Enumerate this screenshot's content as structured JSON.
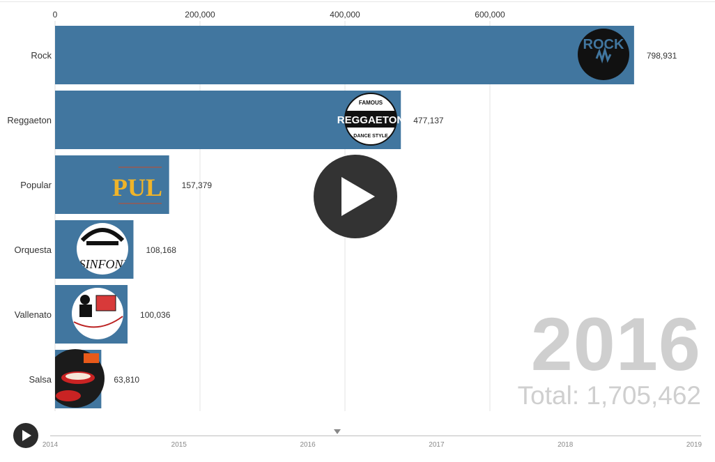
{
  "chart_data": {
    "type": "bar",
    "orientation": "horizontal",
    "categories": [
      "Rock",
      "Reggaeton",
      "Popular",
      "Orquesta",
      "Vallenato",
      "Salsa"
    ],
    "values": [
      798931,
      477137,
      157379,
      108168,
      100036,
      63810
    ],
    "value_labels": [
      "798,931",
      "477,137",
      "157,379",
      "108,168",
      "100,036",
      "63,810"
    ],
    "x_ticks": [
      0,
      200000,
      400000,
      600000
    ],
    "x_tick_labels": [
      "0",
      "200,000",
      "400,000",
      "600,000"
    ],
    "xlim": [
      0,
      800000
    ],
    "bar_color": "#41769f",
    "logos": [
      "Rock",
      "Reggaeton",
      "Popular",
      "Orquesta",
      "Vallenato",
      "Salsa"
    ],
    "grid": true,
    "axis_position": "top"
  },
  "year": "2016",
  "total_text": "Total: 1,705,462",
  "timeline": {
    "labels": [
      "2014",
      "2015",
      "2016",
      "2017",
      "2018",
      "2019"
    ],
    "current": 2016.23
  },
  "logo_text": {
    "rock": "ROCK",
    "reggaeton": "REGGAETON",
    "reggaeton_top": "FAMOUS",
    "reggaeton_bottom": "DANCE STYLE",
    "popular": "PUL",
    "orquesta": "SINFONI"
  },
  "controls": {
    "play_icon": "play-icon"
  }
}
